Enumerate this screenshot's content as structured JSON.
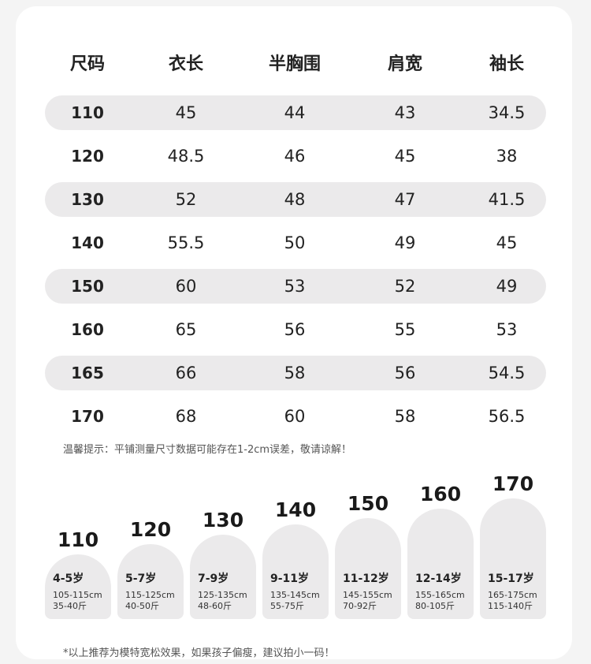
{
  "table": {
    "headers": [
      "尺码",
      "衣长",
      "半胸围",
      "肩宽",
      "袖长"
    ],
    "rows": [
      [
        "110",
        "45",
        "44",
        "43",
        "34.5"
      ],
      [
        "120",
        "48.5",
        "46",
        "45",
        "38"
      ],
      [
        "130",
        "52",
        "48",
        "47",
        "41.5"
      ],
      [
        "140",
        "55.5",
        "50",
        "49",
        "45"
      ],
      [
        "150",
        "60",
        "53",
        "52",
        "49"
      ],
      [
        "160",
        "65",
        "56",
        "55",
        "53"
      ],
      [
        "165",
        "66",
        "58",
        "56",
        "54.5"
      ],
      [
        "170",
        "68",
        "60",
        "58",
        "56.5"
      ]
    ]
  },
  "note": "温馨提示：平铺测量尺寸数据可能存在1-2cm误差，敬请谅解！",
  "recommendations": [
    {
      "size": "110",
      "age": "4-5岁",
      "height": "105-115cm",
      "weight": "35-40斤"
    },
    {
      "size": "120",
      "age": "5-7岁",
      "height": "115-125cm",
      "weight": "40-50斤"
    },
    {
      "size": "130",
      "age": "7-9岁",
      "height": "125-135cm",
      "weight": "48-60斤"
    },
    {
      "size": "140",
      "age": "9-11岁",
      "height": "135-145cm",
      "weight": "55-75斤"
    },
    {
      "size": "150",
      "age": "11-12岁",
      "height": "145-155cm",
      "weight": "70-92斤"
    },
    {
      "size": "160",
      "age": "12-14岁",
      "height": "155-165cm",
      "weight": "80-105斤"
    },
    {
      "size": "170",
      "age": "15-17岁",
      "height": "165-175cm",
      "weight": "115-140斤"
    }
  ],
  "footnote": "*以上推荐为模特宽松效果，如果孩子偏瘦，建议拍小一码！"
}
